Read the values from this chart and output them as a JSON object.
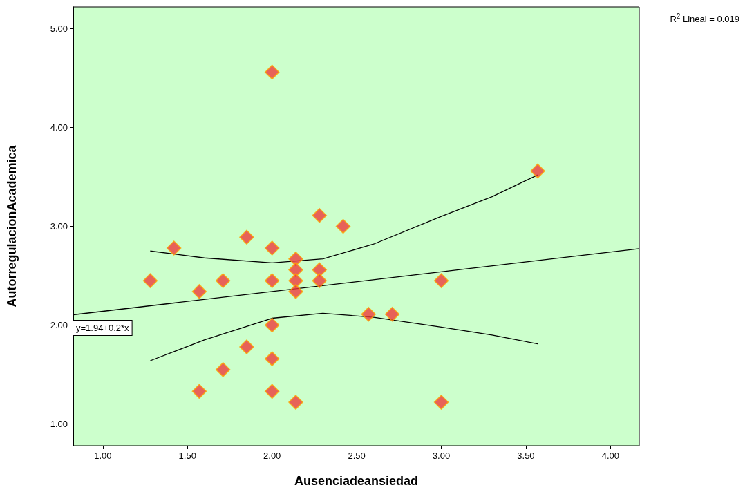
{
  "chart_data": {
    "type": "scatter",
    "xlabel": "Ausenciadeansiedad",
    "ylabel": "AutorregulacionAcademica",
    "xlim": [
      0.825,
      4.17
    ],
    "ylim": [
      0.78,
      5.22
    ],
    "xticks": [
      {
        "value": 1,
        "label": "1.00"
      },
      {
        "value": 1.5,
        "label": "1.50"
      },
      {
        "value": 2,
        "label": "2.00"
      },
      {
        "value": 2.5,
        "label": "2.50"
      },
      {
        "value": 3,
        "label": "3.00"
      },
      {
        "value": 3.5,
        "label": "3.50"
      },
      {
        "value": 4,
        "label": "4.00"
      }
    ],
    "yticks": [
      {
        "value": 1,
        "label": "1.00"
      },
      {
        "value": 2,
        "label": "2.00"
      },
      {
        "value": 3,
        "label": "3.00"
      },
      {
        "value": 4,
        "label": "4.00"
      },
      {
        "value": 5,
        "label": "5.00"
      }
    ],
    "grid": false,
    "marker": "diamond",
    "annotations": [
      "R$^{2}$ Lineal = 0.019",
      "y=1.94+0.2*x"
    ],
    "series": [
      {
        "color": "#ee3b3b",
        "x": [
          1.28,
          1.42,
          1.57,
          1.57,
          1.71,
          1.71,
          1.85,
          1.85,
          2.0,
          2.0,
          2.0,
          2.0,
          2.0,
          2.0,
          2.14,
          2.14,
          2.14,
          2.14,
          2.14,
          2.28,
          2.28,
          2.28,
          2.42,
          2.57,
          2.71,
          3.0,
          3.0,
          3.57
        ],
        "values": [
          2.45,
          2.78,
          2.34,
          1.33,
          2.45,
          1.55,
          2.89,
          1.78,
          4.56,
          2.78,
          2.45,
          2.0,
          1.66,
          1.33,
          2.67,
          2.56,
          2.45,
          2.34,
          1.22,
          3.11,
          2.56,
          2.45,
          3.0,
          2.11,
          2.11,
          2.45,
          1.22,
          3.56
        ]
      },
      {
        "type": "line",
        "color": "#000000",
        "marker": "none",
        "x": [
          0.825,
          4.17
        ],
        "values": [
          2.105,
          2.774
        ]
      },
      {
        "type": "line",
        "color": "#000000",
        "marker": "none",
        "x": [
          1.28,
          1.6,
          2.0,
          2.3,
          2.6,
          3.0,
          3.3,
          3.57
        ],
        "values": [
          2.75,
          2.68,
          2.63,
          2.67,
          2.82,
          3.1,
          3.3,
          3.52
        ]
      },
      {
        "type": "line",
        "color": "#000000",
        "marker": "none",
        "x": [
          1.28,
          1.6,
          2.0,
          2.3,
          2.6,
          3.0,
          3.3,
          3.57
        ],
        "values": [
          1.64,
          1.85,
          2.07,
          2.12,
          2.08,
          1.98,
          1.9,
          1.81
        ]
      }
    ]
  }
}
